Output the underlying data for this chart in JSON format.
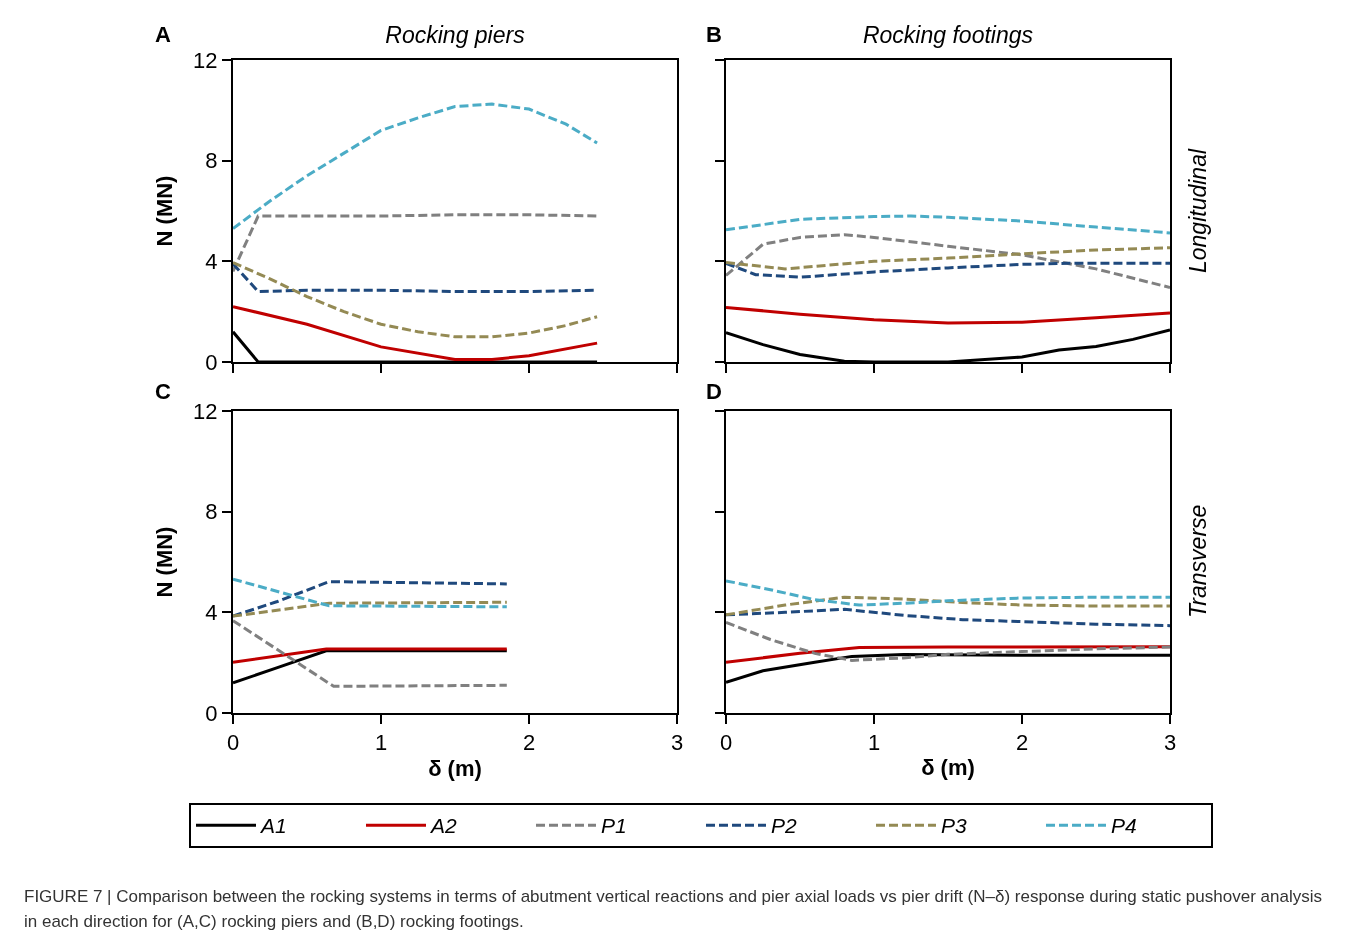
{
  "chart_data": [
    {
      "type": "line",
      "title": "Rocking piers",
      "ylabel": "N (MN)",
      "annotations": [
        "A"
      ],
      "xlim": [
        0,
        3
      ],
      "xticks": [
        0,
        1,
        2,
        3
      ],
      "ylim": [
        0,
        12
      ],
      "yticks": [
        0,
        4,
        8,
        12
      ],
      "tick_labels": "y",
      "series": [
        {
          "color": "#000000",
          "line_style": "solid",
          "x": [
            0,
            0.17,
            0.5,
            1,
            1.5,
            2,
            2.46
          ],
          "values": [
            1.2,
            0,
            0,
            0,
            0,
            0,
            0
          ]
        },
        {
          "color": "#c00000",
          "line_style": "solid",
          "x": [
            0,
            0.5,
            1,
            1.5,
            1.75,
            2,
            2.46
          ],
          "values": [
            2.2,
            1.5,
            0.6,
            0.1,
            0.1,
            0.25,
            0.75
          ]
        },
        {
          "color": "#808080",
          "line_style": "dashed",
          "x": [
            0,
            0.17,
            0.5,
            1,
            1.5,
            2,
            2.46
          ],
          "values": [
            3.6,
            5.8,
            5.8,
            5.8,
            5.85,
            5.85,
            5.8
          ]
        },
        {
          "color": "#1f497d",
          "line_style": "dashed",
          "x": [
            0,
            0.17,
            0.5,
            1,
            1.5,
            2,
            2.46
          ],
          "values": [
            3.9,
            2.8,
            2.85,
            2.85,
            2.8,
            2.8,
            2.85
          ]
        },
        {
          "color": "#948a54",
          "line_style": "dashed",
          "x": [
            0,
            0.25,
            0.5,
            0.75,
            1,
            1.25,
            1.5,
            1.75,
            2,
            2.25,
            2.46
          ],
          "values": [
            3.95,
            3.3,
            2.6,
            2.0,
            1.5,
            1.2,
            1.0,
            1.0,
            1.15,
            1.45,
            1.8
          ]
        },
        {
          "color": "#4bacc6",
          "line_style": "dashed",
          "x": [
            0,
            0.25,
            0.5,
            0.75,
            1,
            1.25,
            1.5,
            1.75,
            2,
            2.25,
            2.46
          ],
          "values": [
            5.3,
            6.4,
            7.4,
            8.3,
            9.2,
            9.7,
            10.15,
            10.25,
            10.05,
            9.45,
            8.7
          ]
        }
      ]
    },
    {
      "type": "line",
      "title": "Rocking footings",
      "y2label": "Longitudinal",
      "annotations": [
        "B"
      ],
      "xlim": [
        0,
        3
      ],
      "xticks": [
        0,
        1,
        2,
        3
      ],
      "ylim": [
        0,
        12
      ],
      "yticks": [
        0,
        4,
        8,
        12
      ],
      "tick_labels": false,
      "series": [
        {
          "color": "#000000",
          "line_style": "solid",
          "x": [
            0,
            0.25,
            0.5,
            0.8,
            1,
            1.5,
            2,
            2.25,
            2.5,
            2.75,
            3
          ],
          "values": [
            1.17,
            0.69,
            0.3,
            0.03,
            0,
            0,
            0.2,
            0.48,
            0.62,
            0.9,
            1.27
          ]
        },
        {
          "color": "#c00000",
          "line_style": "solid",
          "x": [
            0,
            0.5,
            1,
            1.5,
            2,
            2.5,
            3
          ],
          "values": [
            2.17,
            1.9,
            1.68,
            1.55,
            1.58,
            1.76,
            1.95
          ]
        },
        {
          "color": "#808080",
          "line_style": "dashed",
          "x": [
            0,
            0.25,
            0.5,
            0.8,
            1,
            1.5,
            2,
            2.5,
            3
          ],
          "values": [
            3.44,
            4.68,
            4.95,
            5.06,
            4.95,
            4.6,
            4.26,
            3.7,
            2.96
          ]
        },
        {
          "color": "#1f497d",
          "line_style": "dashed",
          "x": [
            0,
            0.2,
            0.5,
            1,
            1.5,
            2,
            2.3,
            3
          ],
          "values": [
            3.92,
            3.47,
            3.37,
            3.58,
            3.74,
            3.88,
            3.92,
            3.92
          ]
        },
        {
          "color": "#948a54",
          "line_style": "dashed",
          "x": [
            0,
            0.4,
            1,
            1.5,
            2,
            2.5,
            3
          ],
          "values": [
            3.95,
            3.7,
            4.0,
            4.13,
            4.3,
            4.45,
            4.54
          ]
        },
        {
          "color": "#4bacc6",
          "line_style": "dashed",
          "x": [
            0,
            0.5,
            1,
            1.25,
            1.5,
            2,
            2.5,
            3
          ],
          "values": [
            5.25,
            5.67,
            5.78,
            5.8,
            5.75,
            5.6,
            5.36,
            5.13
          ]
        }
      ]
    },
    {
      "type": "line",
      "xlabel": "δ (m)",
      "ylabel": "N (MN)",
      "annotations": [
        "C",
        "FIGURE 7 | Comparison between the rocking systems in terms of abutment vertical reactions and pier axial loads vs pier drift (N–δ) response during static pushover analysis in each direction for (A,C) rocking piers and (B,D) rocking footings."
      ],
      "xlim": [
        0,
        3
      ],
      "xticks": [
        0,
        1,
        2,
        3
      ],
      "ylim": [
        0,
        12
      ],
      "yticks": [
        0,
        4,
        8,
        12
      ],
      "legend": "bottom",
      "series": [
        {
          "name": "A1",
          "color": "#000000",
          "line_style": "solid",
          "x": [
            0,
            0.3,
            0.63,
            1.85
          ],
          "values": [
            1.2,
            1.8,
            2.47,
            2.47
          ]
        },
        {
          "name": "A2",
          "color": "#c00000",
          "line_style": "solid",
          "x": [
            0,
            0.63,
            1.85
          ],
          "values": [
            2.02,
            2.54,
            2.54
          ]
        },
        {
          "name": "P1",
          "color": "#808080",
          "line_style": "dashed",
          "x": [
            0,
            0.68,
            1.85
          ],
          "values": [
            3.67,
            1.06,
            1.1
          ]
        },
        {
          "name": "P2",
          "color": "#1f497d",
          "line_style": "dashed",
          "x": [
            0,
            0.3,
            0.65,
            1.85
          ],
          "values": [
            3.85,
            4.43,
            5.22,
            5.13
          ]
        },
        {
          "name": "P3",
          "color": "#948a54",
          "line_style": "dashed",
          "x": [
            0,
            0.65,
            1.85
          ],
          "values": [
            3.85,
            4.36,
            4.4
          ]
        },
        {
          "name": "P4",
          "color": "#4bacc6",
          "line_style": "dashed",
          "x": [
            0,
            0.65,
            1.85
          ],
          "values": [
            5.32,
            4.26,
            4.22
          ]
        }
      ]
    },
    {
      "type": "line",
      "xlabel": "δ (m)",
      "y2label": "Transverse",
      "annotations": [
        "D"
      ],
      "xlim": [
        0,
        3
      ],
      "xticks": [
        0,
        1,
        2,
        3
      ],
      "ylim": [
        0,
        12
      ],
      "yticks": [
        0,
        4,
        8,
        12
      ],
      "tick_labels": "x",
      "series": [
        {
          "color": "#000000",
          "line_style": "solid",
          "x": [
            0,
            0.25,
            0.6,
            0.85,
            1.2,
            2,
            3
          ],
          "values": [
            1.22,
            1.68,
            2.02,
            2.25,
            2.32,
            2.29,
            2.29
          ]
        },
        {
          "color": "#c00000",
          "line_style": "solid",
          "x": [
            0,
            0.5,
            0.9,
            1.5,
            3
          ],
          "values": [
            2.02,
            2.37,
            2.6,
            2.62,
            2.63
          ]
        },
        {
          "color": "#808080",
          "line_style": "dashed",
          "x": [
            0,
            0.3,
            0.6,
            0.85,
            1.2,
            1.5,
            2,
            2.5,
            3
          ],
          "values": [
            3.6,
            2.92,
            2.37,
            2.09,
            2.19,
            2.33,
            2.44,
            2.55,
            2.62
          ]
        },
        {
          "color": "#1f497d",
          "line_style": "dashed",
          "x": [
            0,
            0.4,
            0.8,
            1.2,
            1.6,
            2,
            2.5,
            3
          ],
          "values": [
            3.9,
            4.0,
            4.12,
            3.88,
            3.71,
            3.63,
            3.53,
            3.47
          ]
        },
        {
          "color": "#948a54",
          "line_style": "dashed",
          "x": [
            0,
            0.4,
            0.8,
            1.2,
            1.6,
            2,
            2.5,
            3
          ],
          "values": [
            3.9,
            4.29,
            4.6,
            4.53,
            4.39,
            4.29,
            4.25,
            4.25
          ]
        },
        {
          "color": "#4bacc6",
          "line_style": "dashed",
          "x": [
            0,
            0.3,
            0.6,
            0.9,
            1.2,
            1.5,
            2,
            2.5,
            3
          ],
          "values": [
            5.25,
            4.9,
            4.5,
            4.29,
            4.36,
            4.46,
            4.57,
            4.6,
            4.6
          ]
        }
      ]
    }
  ]
}
